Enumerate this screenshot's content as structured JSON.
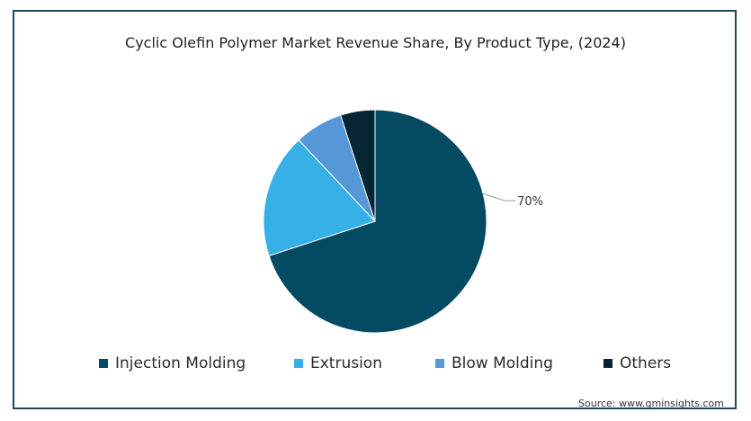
{
  "chart_data": {
    "type": "pie",
    "title": "Cyclic Olefin Polymer Market Revenue Share, By Product Type,  (2024)",
    "categories": [
      "Injection Molding",
      "Extrusion",
      "Blow Molding",
      "Others"
    ],
    "values": [
      70,
      18,
      7,
      5
    ],
    "colors": [
      "#054a63",
      "#36b0e6",
      "#5597d7",
      "#062535"
    ],
    "data_labels": [
      "70%",
      "",
      "",
      ""
    ],
    "legend_placement": "bottom",
    "start_angle": "12 o'clock",
    "direction": "clockwise"
  },
  "source": "Source: www.gminsights.com"
}
